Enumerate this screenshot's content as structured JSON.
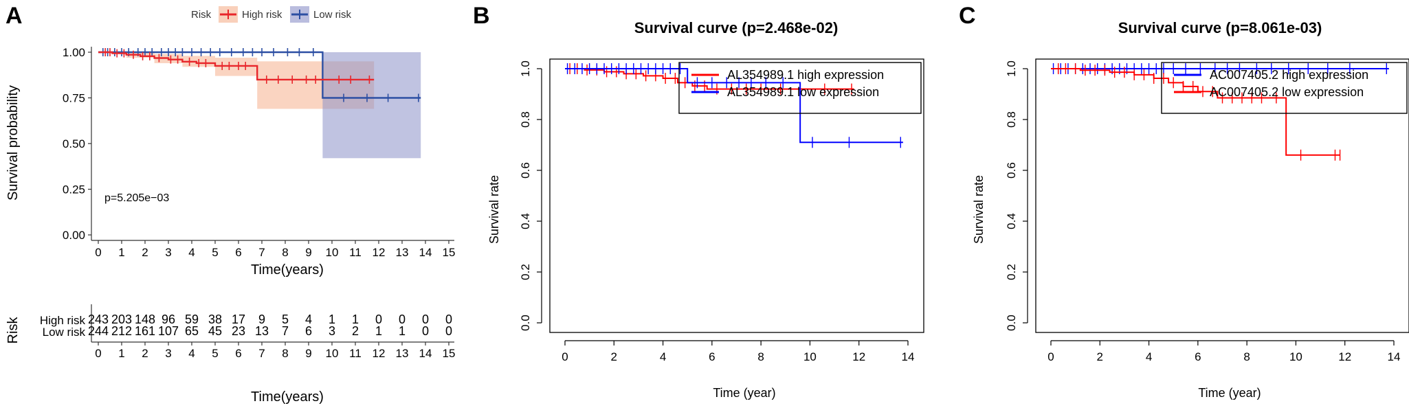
{
  "panels": {
    "A": {
      "letter": "A"
    },
    "B": {
      "letter": "B"
    },
    "C": {
      "letter": "C"
    }
  },
  "colors": {
    "high": "#e8262b",
    "low": "#2c4fa3",
    "highFill": "#f5b08e",
    "lowFill": "#8c91c8",
    "bHigh": "#ff0000",
    "bLow": "#0000ff"
  },
  "chart_data": [
    {
      "id": "A",
      "type": "line",
      "legend": {
        "title": "Risk",
        "items": [
          "High risk",
          "Low risk"
        ],
        "position": "top"
      },
      "xlabel": "Time(years)",
      "ylabel": "Survival probability",
      "xlim": [
        0,
        15
      ],
      "ylim": [
        0,
        1
      ],
      "xticks": [
        "0",
        "1",
        "2",
        "3",
        "4",
        "5",
        "6",
        "7",
        "8",
        "9",
        "10",
        "11",
        "12",
        "13",
        "14",
        "15"
      ],
      "yticks": [
        "0.00",
        "0.25",
        "0.50",
        "0.75",
        "1.00"
      ],
      "pvalue": "p=5.205e−03",
      "series": [
        {
          "name": "High risk",
          "steps": [
            [
              0,
              1.0
            ],
            [
              0.6,
              0.994
            ],
            [
              1.2,
              0.986
            ],
            [
              1.8,
              0.978
            ],
            [
              2.4,
              0.968
            ],
            [
              3.0,
              0.96
            ],
            [
              3.6,
              0.948
            ],
            [
              4.2,
              0.94
            ],
            [
              5.0,
              0.925
            ],
            [
              6.8,
              0.85
            ],
            [
              11.8,
              0.85
            ]
          ],
          "ci": [
            [
              0,
              1.0,
              1.0
            ],
            [
              1.2,
              1.0,
              0.97
            ],
            [
              2.4,
              0.99,
              0.94
            ],
            [
              3.6,
              0.98,
              0.92
            ],
            [
              5.0,
              0.97,
              0.87
            ],
            [
              6.8,
              0.95,
              0.69
            ],
            [
              11.8,
              0.95,
              0.69
            ]
          ],
          "censor": [
            0.3,
            0.5,
            0.8,
            1.1,
            1.5,
            1.9,
            2.2,
            2.6,
            3.1,
            3.4,
            3.9,
            4.3,
            4.6,
            5.3,
            5.6,
            6.0,
            6.3,
            7.2,
            7.7,
            8.3,
            8.9,
            9.3,
            10.3,
            10.8,
            11.6
          ]
        },
        {
          "name": "Low risk",
          "steps": [
            [
              0,
              1.0
            ],
            [
              9.6,
              1.0
            ],
            [
              9.6,
              0.75
            ],
            [
              13.8,
              0.75
            ]
          ],
          "ci": [
            [
              0,
              1.0,
              1.0
            ],
            [
              9.6,
              1.0,
              1.0
            ],
            [
              9.6,
              1.0,
              0.42
            ],
            [
              13.8,
              1.0,
              0.42
            ]
          ],
          "censor": [
            0.2,
            0.4,
            0.7,
            1.0,
            1.3,
            1.7,
            2.0,
            2.3,
            2.7,
            3.0,
            3.3,
            3.6,
            4.0,
            4.4,
            4.8,
            5.2,
            5.7,
            6.2,
            6.6,
            7.0,
            7.5,
            8.1,
            8.6,
            9.2,
            10.5,
            11.5,
            12.4,
            13.7
          ]
        }
      ]
    },
    {
      "id": "A-risk-table",
      "type": "table",
      "ylabel": "Risk",
      "xlabel": "Time(years)",
      "rows": [
        {
          "name": "High risk",
          "values": [
            "243",
            "203",
            "148",
            "96",
            "59",
            "38",
            "17",
            "9",
            "5",
            "4",
            "1",
            "1",
            "0",
            "0",
            "0",
            "0"
          ]
        },
        {
          "name": "Low risk",
          "values": [
            "244",
            "212",
            "161",
            "107",
            "65",
            "45",
            "23",
            "13",
            "7",
            "6",
            "3",
            "2",
            "1",
            "1",
            "0",
            "0"
          ]
        }
      ]
    },
    {
      "id": "B",
      "type": "line",
      "title": "Survival curve (p=2.468e-02)",
      "xlabel": "Time (year)",
      "ylabel": "Survival rate",
      "xlim": [
        0,
        14
      ],
      "ylim": [
        0,
        1
      ],
      "xticks": [
        "0",
        "2",
        "4",
        "6",
        "8",
        "10",
        "12",
        "14"
      ],
      "yticks": [
        "0.0",
        "0.2",
        "0.4",
        "0.6",
        "0.8",
        "1.0"
      ],
      "legend": {
        "items": [
          "AL354989.1 high expression",
          "AL354989.1 low expression"
        ],
        "position": "top-right"
      },
      "series": [
        {
          "name": "AL354989.1 high expression",
          "steps": [
            [
              0,
              1.0
            ],
            [
              0.8,
              0.995
            ],
            [
              1.6,
              0.988
            ],
            [
              2.4,
              0.98
            ],
            [
              3.2,
              0.972
            ],
            [
              4.0,
              0.962
            ],
            [
              4.6,
              0.945
            ],
            [
              5.2,
              0.932
            ],
            [
              5.8,
              0.92
            ],
            [
              11.8,
              0.92
            ]
          ],
          "censor": [
            0.2,
            0.5,
            0.9,
            1.3,
            1.7,
            2.1,
            2.5,
            2.9,
            3.3,
            3.7,
            4.1,
            4.5,
            4.9,
            5.3,
            5.7,
            6.2,
            6.8,
            7.4,
            8.0,
            8.8,
            9.6,
            10.6,
            11.7
          ]
        },
        {
          "name": "AL354989.1 low expression",
          "steps": [
            [
              0,
              1.0
            ],
            [
              5.0,
              1.0
            ],
            [
              5.0,
              0.945
            ],
            [
              9.6,
              0.945
            ],
            [
              9.6,
              0.71
            ],
            [
              13.8,
              0.71
            ]
          ],
          "censor": [
            0.1,
            0.4,
            0.7,
            1.0,
            1.3,
            1.6,
            1.9,
            2.2,
            2.5,
            2.8,
            3.1,
            3.4,
            3.7,
            4.0,
            4.3,
            4.7,
            5.4,
            6.0,
            6.6,
            7.1,
            7.6,
            8.2,
            8.9,
            10.1,
            11.6,
            13.7
          ]
        }
      ]
    },
    {
      "id": "C",
      "type": "line",
      "title": "Survival curve (p=8.061e-03)",
      "xlabel": "Time (year)",
      "ylabel": "Survival rate",
      "xlim": [
        0,
        14
      ],
      "ylim": [
        0,
        1
      ],
      "xticks": [
        "0",
        "2",
        "4",
        "6",
        "8",
        "10",
        "12",
        "14"
      ],
      "yticks": [
        "0.0",
        "0.2",
        "0.4",
        "0.6",
        "0.8",
        "1.0"
      ],
      "legend": {
        "items": [
          "AC007405.2 high expression",
          "AC007405.2 low expression"
        ],
        "position": "top-right"
      },
      "series": [
        {
          "name": "AC007405.2 high expression",
          "steps": [
            [
              0,
              1.0
            ],
            [
              13.8,
              1.0
            ]
          ],
          "censor": [
            0.1,
            0.4,
            0.7,
            1.0,
            1.3,
            1.6,
            1.9,
            2.2,
            2.5,
            2.8,
            3.1,
            3.4,
            3.7,
            4.0,
            4.3,
            4.6,
            5.0,
            5.5,
            6.1,
            6.7,
            7.2,
            7.7,
            8.4,
            9.0,
            9.7,
            10.5,
            11.3,
            12.2,
            13.7
          ]
        },
        {
          "name": "AC007405.2 low expression",
          "steps": [
            [
              0,
              1.0
            ],
            [
              1.2,
              0.994
            ],
            [
              2.4,
              0.986
            ],
            [
              3.4,
              0.976
            ],
            [
              4.2,
              0.962
            ],
            [
              4.8,
              0.945
            ],
            [
              5.4,
              0.93
            ],
            [
              6.0,
              0.91
            ],
            [
              6.8,
              0.885
            ],
            [
              9.6,
              0.885
            ],
            [
              9.6,
              0.66
            ],
            [
              11.8,
              0.66
            ]
          ],
          "censor": [
            0.3,
            0.6,
            1.0,
            1.4,
            1.8,
            2.2,
            2.6,
            3.0,
            3.4,
            3.8,
            4.2,
            4.6,
            5.0,
            5.4,
            5.8,
            6.2,
            6.6,
            7.0,
            7.4,
            7.8,
            8.2,
            8.6,
            9.2,
            10.2,
            11.6,
            11.8
          ]
        }
      ]
    }
  ]
}
